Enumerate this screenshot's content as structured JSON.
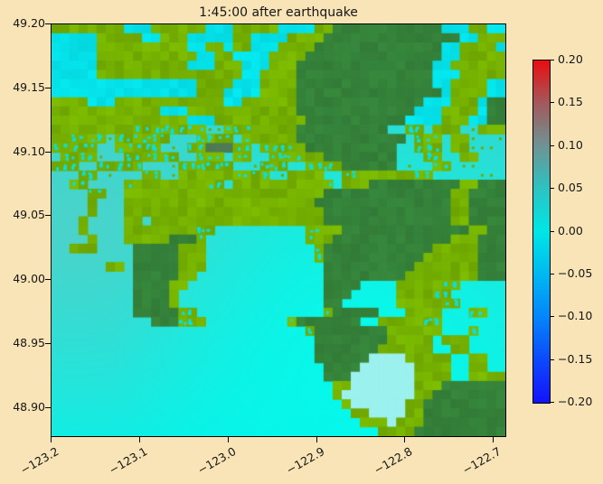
{
  "figure": {
    "background_color": "#F8E4B6"
  },
  "chart_data": {
    "type": "heatmap",
    "title": "1:45:00 after earthquake",
    "subtitle": "",
    "xlabel": "",
    "ylabel": "",
    "grid_on": false,
    "xlim": [
      -123.2,
      -122.685
    ],
    "ylim": [
      48.8766,
      49.2
    ],
    "x_ticks": [
      {
        "value": -123.2,
        "label": "−123.2"
      },
      {
        "value": -123.1,
        "label": "−123.1"
      },
      {
        "value": -123.0,
        "label": "−123.0"
      },
      {
        "value": -122.9,
        "label": "−122.9"
      },
      {
        "value": -122.8,
        "label": "−122.8"
      },
      {
        "value": -122.7,
        "label": "−122.7"
      }
    ],
    "y_ticks": [
      {
        "value": 49.2,
        "label": "49.20"
      },
      {
        "value": 49.15,
        "label": "49.15"
      },
      {
        "value": 49.1,
        "label": "49.10"
      },
      {
        "value": 49.05,
        "label": "49.05"
      },
      {
        "value": 49.0,
        "label": "49.00"
      },
      {
        "value": 48.95,
        "label": "48.95"
      },
      {
        "value": 48.9,
        "label": "48.90"
      }
    ],
    "colorbar": {
      "min": -0.2,
      "max": 0.2,
      "ticks": [
        {
          "value": 0.2,
          "label": "0.20"
        },
        {
          "value": 0.15,
          "label": "0.15"
        },
        {
          "value": 0.1,
          "label": "0.10"
        },
        {
          "value": 0.05,
          "label": "0.05"
        },
        {
          "value": 0.0,
          "label": "0.00"
        },
        {
          "value": -0.05,
          "label": "−0.05"
        },
        {
          "value": -0.1,
          "label": "−0.10"
        },
        {
          "value": -0.15,
          "label": "−0.15"
        },
        {
          "value": -0.2,
          "label": "−0.20"
        }
      ],
      "stops": [
        [
          0,
          "#ea0d10"
        ],
        [
          12.5,
          "#a2595c"
        ],
        [
          25,
          "#6f9394"
        ],
        [
          37.5,
          "#2cc3c2"
        ],
        [
          50,
          "#00e6e6"
        ],
        [
          62.5,
          "#00b8f2"
        ],
        [
          75,
          "#0585fa"
        ],
        [
          87.5,
          "#0d49fb"
        ],
        [
          100,
          "#1412fb"
        ]
      ]
    },
    "water_shading": {
      "base": [
        [
          0,
          "#2fd6cf"
        ],
        [
          0.45,
          "#2adfd5"
        ],
        [
          1,
          "#0cf0e6"
        ]
      ],
      "bright": {
        "x": 0.683,
        "y": 0.785,
        "r": 0.55,
        "rgb": "0,255,240",
        "a": 0.8
      },
      "haze": {
        "x": 0.05,
        "y": 0.52,
        "r": 0.5,
        "rgb": "105,200,193",
        "a": 0.55
      }
    },
    "grid": {
      "cols": 50,
      "rows": 45,
      "speckle_rows": [
        11,
        16
      ],
      "palette": {
        "l": "#76B100",
        "d": "#35823A",
        "c": "#05E1E9",
        "k": "#4E7A55",
        "p": "#9CF1EE",
        "m_dot": "#0ADFE0"
      },
      "legend": {
        "l": "low olive land",
        "d": "dark green upland",
        "c": "flat cyan water cell (coarse grid)",
        "k": "dark city blocks",
        "p": "pale shallow bay",
        "m": "mixed land/water speckle",
        ".": "open water (gradient)"
      },
      "cells": [
        "llllllllcccllllllccclllllccccllddddddddddddcccllcc",
        "ccccclllllcclllcccccllcccclllldddddddddddddddcclllc",
        "cccccllllllllllccllcllcccllllddddddddddddddccllllc",
        "ccccclllllllllllccllcccclllldddddddddddddddcclllll",
        "cccccllllllllllccclllcccllldddddddddddddddccllllll",
        "cccccllllllllllllllllcclllldddddddddddddddccclllll",
        "ccccccccccccccccllllccclllldddddddddddddddccllllcc",
        "cccccccccccccccclllccccllllddddddddddddddddcllllcc",
        "llllcccllllllllllllccllllllddddddddddddddccclllcdd",
        "llllllllllllccclllllllllllldddddddddddddcccllllcdd",
        "lllllllllllllllccclllllllllldddddddddddcccclllccdd",
        "lllllllllmmmmmmmm..mmmllllldddddddddd..mm.lll..lll",
        "llmmmm.mmmmmm...mmmm.mllllldddddddddddd.mmm.ll....",
        "mmmmm..mmmmm...mmkkkmm.mmmmldddddddddd..mmm.ll....",
        ".mmmm...mmmmmm..mmm.mm..mmmmlldddddddd...mm..ll...",
        "mmm..mmmmm....mmmmmm...mmm..mmmldddddd....mm......",
        "...mm.....mm..llllllmmmm..llll..mmllllllmm........",
        "..mm....mllllllllmm.llllllllllm.lllddddddddddllddd",
        "....mm..llllllllllllllllllllllddddddddddddddlldddd",
        "....l...llllllllllllllllllllldddddddddddddddlldddd",
        "....l...llllllllllllllllllllllddddddddddddddlldddd",
        "...l....ll.lllllllllllllllllllddddddddddddddlldddd",
        "...l....llllllllmm..........mmllddddddddddddddlldd",
        "....l...llllldddm...........mlldddddddddddddlllddd",
        "..lll....dddddlll............mddddddddddddlllllddd",
        ".........dddddlll............mdddddddddddllllllddd",
        "......ll.dddddlll.............ddddddddddlllllllddd",
        ".........dddddll..............dddddddddllllllllddd",
        ".........ddddll...............dddd....lllllmm.....",
        ".........ddddl................ddd.....llllmm......",
        ".........ddddl................dd......lllllmm.....",
        ".........dddddmm..............mddddd...llll...mm..",
        "...........dddmml.........mddddddd..lllllmm.......",
        "............................mddddddddllllll...m...",
        ".............................ddddddddlllll.lll....",
        ".............................dddddddllllll..ll....",
        ".............................ddddddpppplllll..ll..",
        "..............................ddddppppppllll..ll..",
        "..............................dddpppppppllll..llll",
        "...............................llppppppplllddddddd",
        "...............................lpppppppplldddddddd",
        "................................lppppppllddddddddd",
        ".................................llppppllddddddddd",
        "..................................lllplllddddddddd",
        "....................................lllldddddddddd"
      ]
    }
  }
}
